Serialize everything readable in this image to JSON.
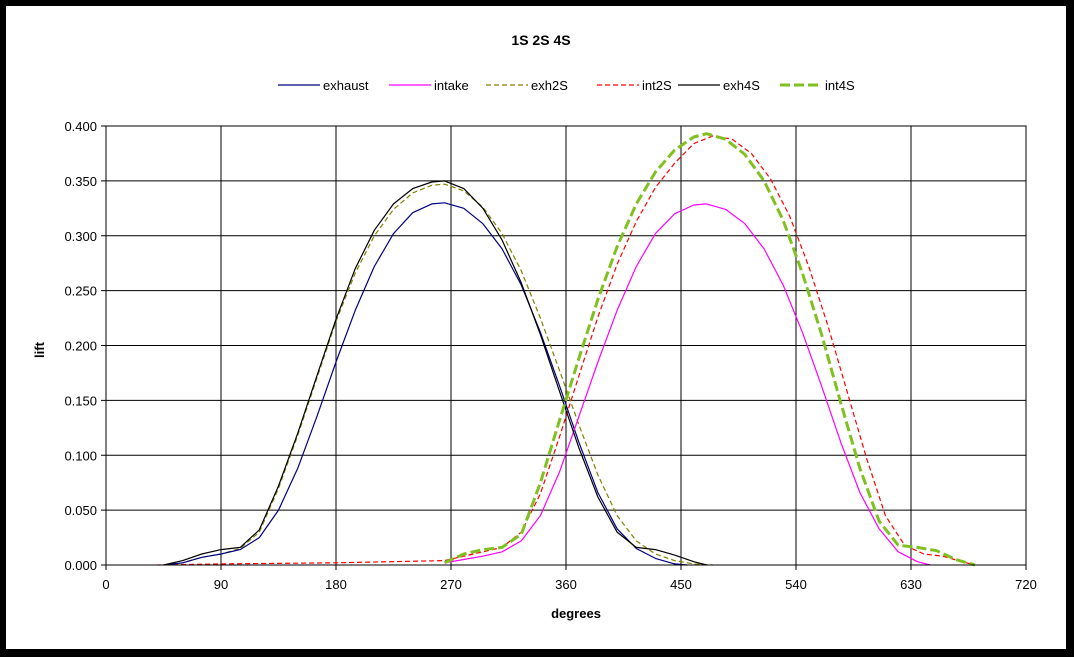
{
  "chart_data": {
    "type": "line",
    "title": "1S 2S 4S",
    "xlabel": "degrees",
    "ylabel": "lift",
    "xlim": [
      0,
      720
    ],
    "ylim": [
      0,
      0.4
    ],
    "x_ticks": [
      "0",
      "90",
      "180",
      "270",
      "360",
      "450",
      "540",
      "630",
      "720"
    ],
    "y_ticks": [
      "0.000",
      "0.050",
      "0.100",
      "0.150",
      "0.200",
      "0.250",
      "0.300",
      "0.350",
      "0.400"
    ],
    "grid": true,
    "legend_position": "top",
    "series": [
      {
        "name": "exhaust",
        "color": "#000080",
        "dash": "solid",
        "points": [
          [
            45,
            0
          ],
          [
            60,
            0.002
          ],
          [
            75,
            0.007
          ],
          [
            90,
            0.01
          ],
          [
            105,
            0.014
          ],
          [
            120,
            0.025
          ],
          [
            135,
            0.05
          ],
          [
            150,
            0.088
          ],
          [
            165,
            0.135
          ],
          [
            180,
            0.185
          ],
          [
            195,
            0.232
          ],
          [
            210,
            0.272
          ],
          [
            225,
            0.302
          ],
          [
            240,
            0.321
          ],
          [
            255,
            0.329
          ],
          [
            265,
            0.33
          ],
          [
            280,
            0.325
          ],
          [
            295,
            0.311
          ],
          [
            310,
            0.288
          ],
          [
            325,
            0.255
          ],
          [
            340,
            0.212
          ],
          [
            355,
            0.163
          ],
          [
            370,
            0.112
          ],
          [
            385,
            0.066
          ],
          [
            400,
            0.033
          ],
          [
            415,
            0.015
          ],
          [
            430,
            0.006
          ],
          [
            445,
            0.001
          ],
          [
            455,
            0
          ]
        ]
      },
      {
        "name": "intake",
        "color": "#ff00ff",
        "dash": "solid",
        "points": [
          [
            265,
            0.002
          ],
          [
            280,
            0.005
          ],
          [
            295,
            0.008
          ],
          [
            310,
            0.012
          ],
          [
            325,
            0.022
          ],
          [
            340,
            0.045
          ],
          [
            355,
            0.085
          ],
          [
            370,
            0.135
          ],
          [
            385,
            0.185
          ],
          [
            400,
            0.232
          ],
          [
            415,
            0.272
          ],
          [
            430,
            0.302
          ],
          [
            445,
            0.32
          ],
          [
            460,
            0.328
          ],
          [
            470,
            0.329
          ],
          [
            485,
            0.324
          ],
          [
            500,
            0.311
          ],
          [
            515,
            0.288
          ],
          [
            530,
            0.255
          ],
          [
            545,
            0.212
          ],
          [
            560,
            0.163
          ],
          [
            575,
            0.112
          ],
          [
            590,
            0.066
          ],
          [
            605,
            0.033
          ],
          [
            620,
            0.012
          ],
          [
            635,
            0.003
          ],
          [
            645,
            0
          ]
        ]
      },
      {
        "name": "exh2S",
        "color": "#808000",
        "dash": "5,3",
        "points": [
          [
            45,
            0
          ],
          [
            60,
            0.002
          ],
          [
            75,
            0.007
          ],
          [
            90,
            0.01
          ],
          [
            105,
            0.015
          ],
          [
            120,
            0.03
          ],
          [
            135,
            0.07
          ],
          [
            150,
            0.118
          ],
          [
            165,
            0.17
          ],
          [
            180,
            0.222
          ],
          [
            195,
            0.266
          ],
          [
            210,
            0.3
          ],
          [
            225,
            0.324
          ],
          [
            240,
            0.339
          ],
          [
            255,
            0.346
          ],
          [
            265,
            0.347
          ],
          [
            280,
            0.341
          ],
          [
            295,
            0.326
          ],
          [
            310,
            0.302
          ],
          [
            325,
            0.268
          ],
          [
            340,
            0.225
          ],
          [
            355,
            0.177
          ],
          [
            370,
            0.128
          ],
          [
            385,
            0.082
          ],
          [
            400,
            0.045
          ],
          [
            415,
            0.022
          ],
          [
            430,
            0.01
          ],
          [
            445,
            0.004
          ],
          [
            460,
            0.001
          ],
          [
            475,
            0
          ]
        ]
      },
      {
        "name": "int2S",
        "color": "#ff0000",
        "dash": "5,3",
        "points": [
          [
            40,
            0
          ],
          [
            90,
            0.001
          ],
          [
            180,
            0.002
          ],
          [
            265,
            0.004
          ],
          [
            280,
            0.008
          ],
          [
            295,
            0.012
          ],
          [
            310,
            0.016
          ],
          [
            325,
            0.03
          ],
          [
            340,
            0.065
          ],
          [
            355,
            0.117
          ],
          [
            370,
            0.172
          ],
          [
            385,
            0.226
          ],
          [
            400,
            0.274
          ],
          [
            415,
            0.313
          ],
          [
            430,
            0.344
          ],
          [
            445,
            0.366
          ],
          [
            460,
            0.384
          ],
          [
            475,
            0.391
          ],
          [
            490,
            0.388
          ],
          [
            505,
            0.375
          ],
          [
            520,
            0.352
          ],
          [
            535,
            0.318
          ],
          [
            550,
            0.272
          ],
          [
            565,
            0.218
          ],
          [
            580,
            0.158
          ],
          [
            595,
            0.098
          ],
          [
            610,
            0.045
          ],
          [
            625,
            0.018
          ],
          [
            640,
            0.01
          ],
          [
            655,
            0.008
          ],
          [
            670,
            0.003
          ],
          [
            680,
            0
          ]
        ]
      },
      {
        "name": "exh4S",
        "color": "#000000",
        "dash": "solid",
        "points": [
          [
            45,
            0
          ],
          [
            60,
            0.004
          ],
          [
            75,
            0.01
          ],
          [
            90,
            0.014
          ],
          [
            105,
            0.016
          ],
          [
            120,
            0.032
          ],
          [
            135,
            0.072
          ],
          [
            150,
            0.12
          ],
          [
            165,
            0.172
          ],
          [
            180,
            0.224
          ],
          [
            195,
            0.27
          ],
          [
            210,
            0.305
          ],
          [
            225,
            0.329
          ],
          [
            240,
            0.343
          ],
          [
            255,
            0.349
          ],
          [
            265,
            0.35
          ],
          [
            280,
            0.343
          ],
          [
            295,
            0.325
          ],
          [
            310,
            0.296
          ],
          [
            325,
            0.257
          ],
          [
            340,
            0.21
          ],
          [
            355,
            0.158
          ],
          [
            370,
            0.107
          ],
          [
            385,
            0.062
          ],
          [
            400,
            0.03
          ],
          [
            415,
            0.016
          ],
          [
            430,
            0.014
          ],
          [
            445,
            0.009
          ],
          [
            460,
            0.003
          ],
          [
            470,
            0
          ]
        ]
      },
      {
        "name": "int4S",
        "color": "#80c020",
        "dash": "10,4",
        "points": [
          [
            265,
            0.002
          ],
          [
            280,
            0.01
          ],
          [
            295,
            0.014
          ],
          [
            310,
            0.016
          ],
          [
            325,
            0.028
          ],
          [
            340,
            0.075
          ],
          [
            355,
            0.132
          ],
          [
            370,
            0.188
          ],
          [
            385,
            0.242
          ],
          [
            400,
            0.29
          ],
          [
            415,
            0.329
          ],
          [
            430,
            0.358
          ],
          [
            445,
            0.378
          ],
          [
            460,
            0.39
          ],
          [
            470,
            0.393
          ],
          [
            485,
            0.388
          ],
          [
            500,
            0.374
          ],
          [
            515,
            0.35
          ],
          [
            530,
            0.314
          ],
          [
            545,
            0.266
          ],
          [
            560,
            0.21
          ],
          [
            575,
            0.148
          ],
          [
            590,
            0.088
          ],
          [
            605,
            0.04
          ],
          [
            620,
            0.018
          ],
          [
            635,
            0.016
          ],
          [
            650,
            0.013
          ],
          [
            665,
            0.005
          ],
          [
            680,
            0
          ]
        ]
      }
    ]
  }
}
